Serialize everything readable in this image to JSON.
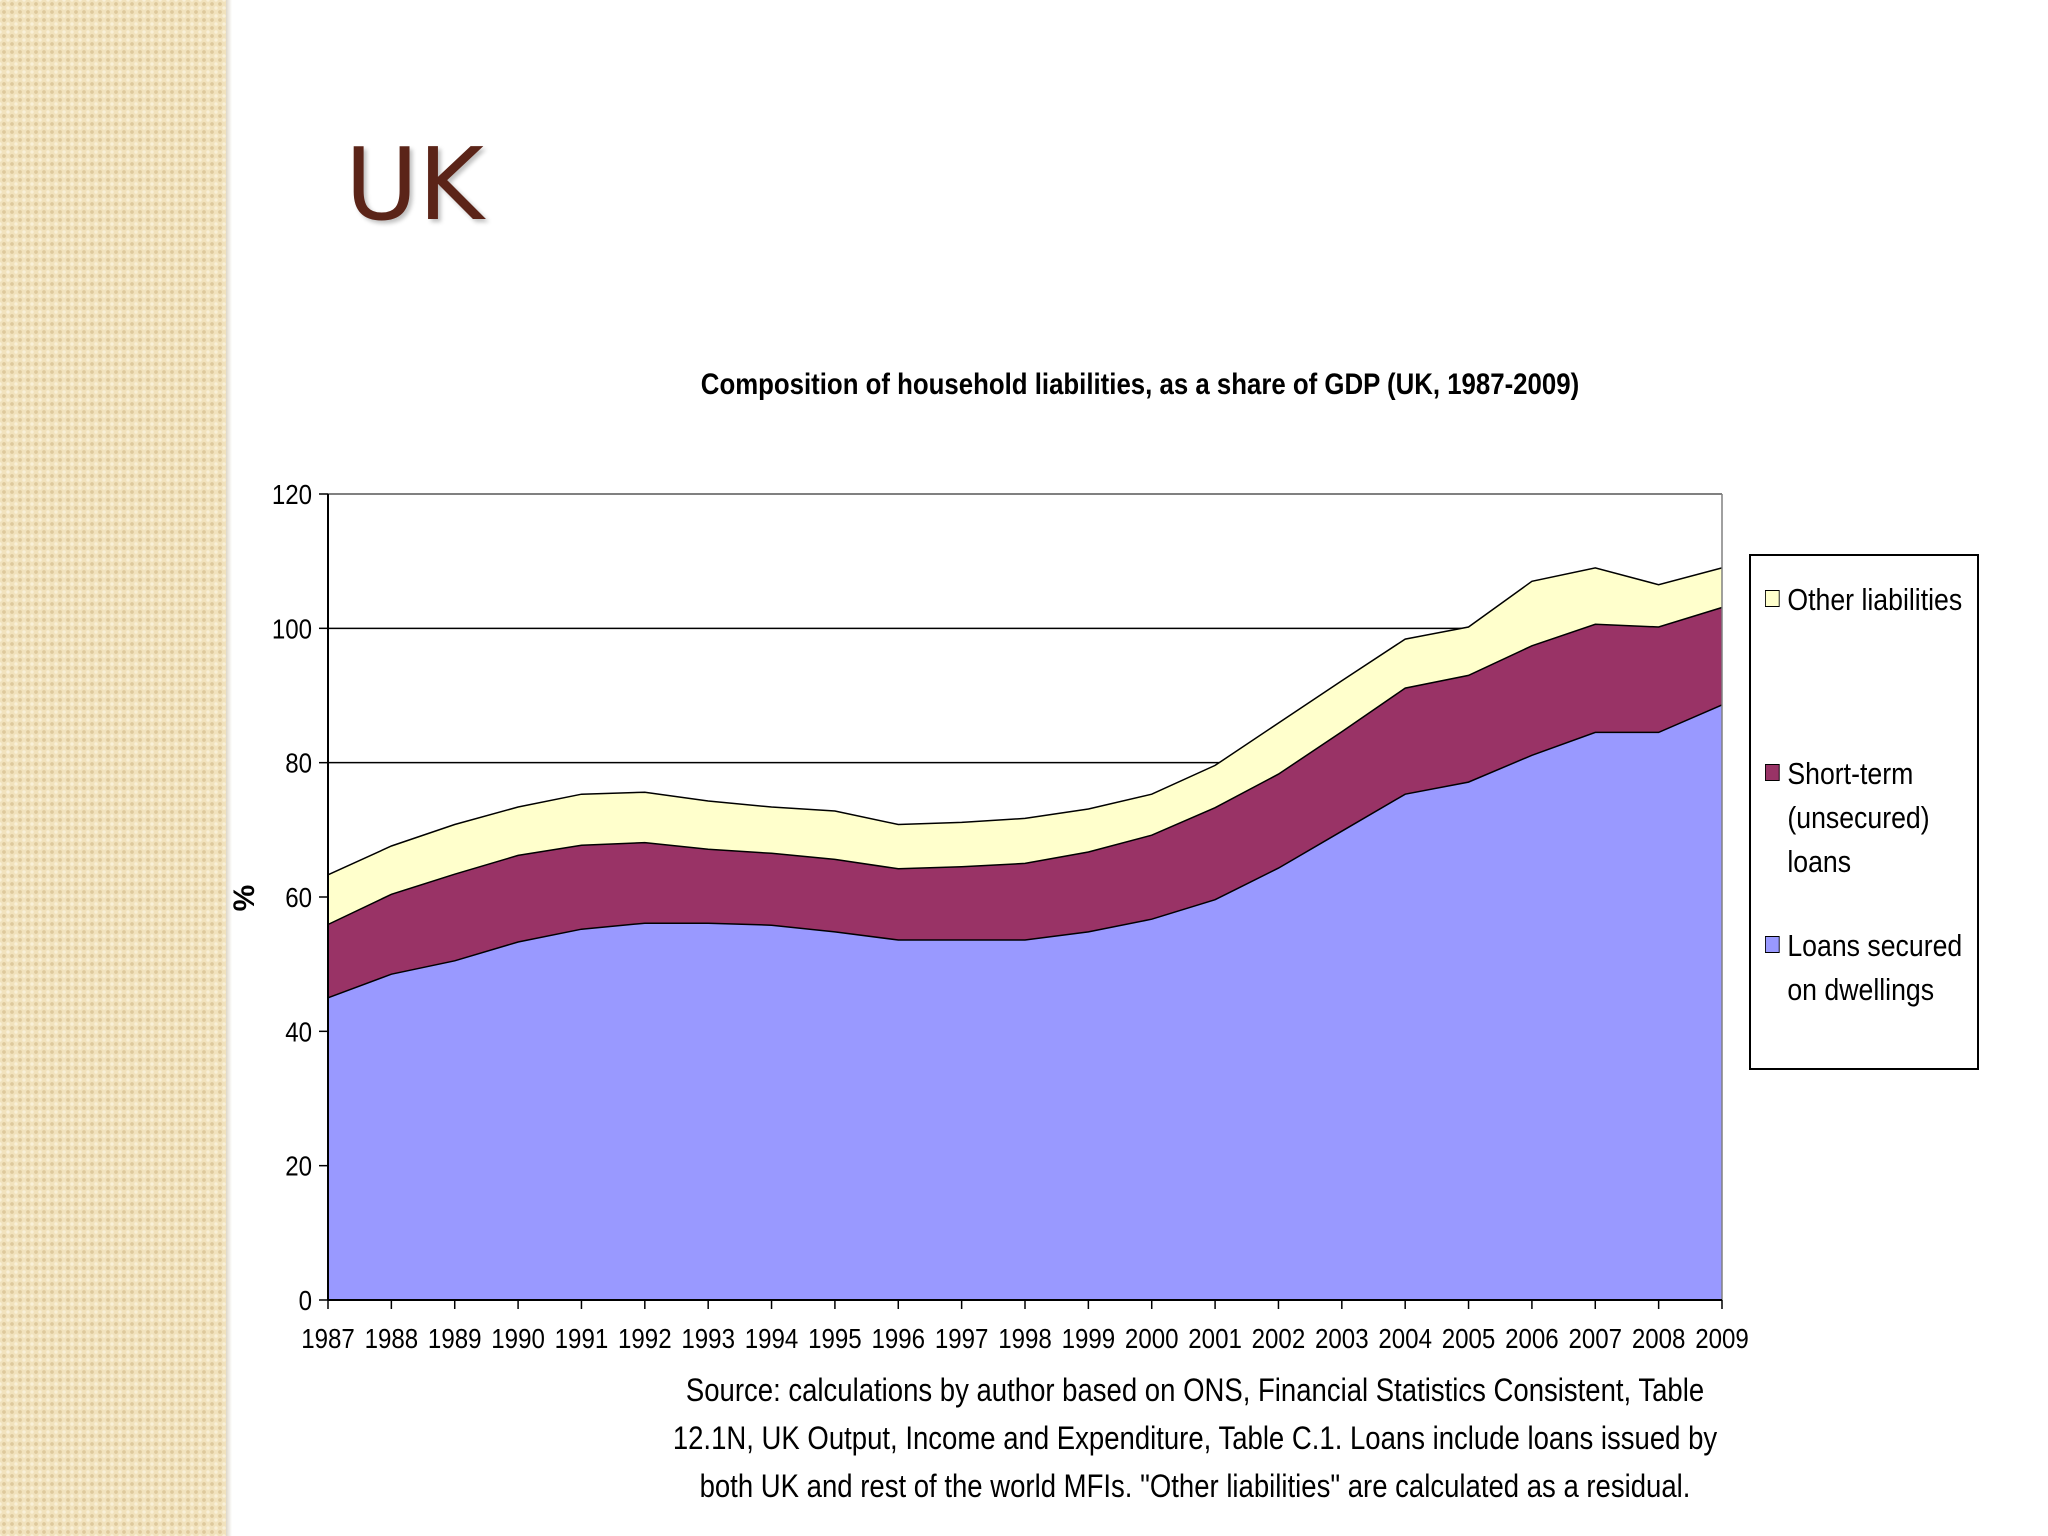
{
  "slide": {
    "title": "UK",
    "source_note": "Source: calculations by author based on ONS, Financial Statistics Consistent, Table 12.1N, UK Output, Income and Expenditure, Table C.1. Loans include loans issued by both UK and rest of the world MFIs. \"Other liabilities\" are calculated as a residual."
  },
  "chart_data": {
    "type": "area",
    "stacked": true,
    "title": "Composition of household liabilities, as a share of GDP (UK, 1987-2009)",
    "xlabel": "",
    "ylabel": "%",
    "ylim": [
      0,
      120
    ],
    "yticks": [
      0,
      20,
      40,
      60,
      80,
      100,
      120
    ],
    "grid": {
      "y": true,
      "gridlines_at": [
        80,
        100,
        120
      ]
    },
    "legend_position": "right",
    "categories": [
      "1987",
      "1988",
      "1989",
      "1990",
      "1991",
      "1992",
      "1993",
      "1994",
      "1995",
      "1996",
      "1997",
      "1998",
      "1999",
      "2000",
      "2001",
      "2002",
      "2003",
      "2004",
      "2005",
      "2006",
      "2007",
      "2008",
      "2009"
    ],
    "series": [
      {
        "name": "Loans secured on dwellings",
        "legend_label": "Loans secured\non dwellings",
        "color": "#9999ff",
        "values": [
          45,
          48.5,
          50.5,
          53.3,
          55.2,
          56.1,
          56.1,
          55.8,
          54.8,
          53.6,
          53.6,
          53.6,
          54.8,
          56.7,
          59.6,
          64.3,
          69.8,
          75.3,
          77.1,
          81.1,
          84.5,
          84.5,
          88.6
        ]
      },
      {
        "name": "Short-term (unsecured) loans",
        "legend_label": "Short-term\n(unsecured)\nloans",
        "color": "#993366",
        "values": [
          10.9,
          11.9,
          12.9,
          12.9,
          12.5,
          12,
          11,
          10.7,
          10.8,
          10.6,
          10.9,
          11.4,
          11.9,
          12.5,
          13.7,
          14,
          14.8,
          15.8,
          15.9,
          16.3,
          16.1,
          15.7,
          14.5
        ]
      },
      {
        "name": "Other liabilities",
        "legend_label": "Other liabilities",
        "color": "#ffffcc",
        "values": [
          7.4,
          7.2,
          7.4,
          7.2,
          7.6,
          7.5,
          7.2,
          6.9,
          7.2,
          6.6,
          6.6,
          6.7,
          6.4,
          6.1,
          6.3,
          7.6,
          7.6,
          7.3,
          7.2,
          9.6,
          8.4,
          6.3,
          5.9
        ]
      }
    ]
  }
}
